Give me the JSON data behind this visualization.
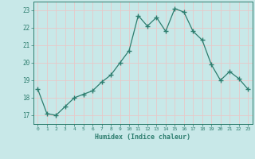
{
  "x": [
    0,
    1,
    2,
    3,
    4,
    5,
    6,
    7,
    8,
    9,
    10,
    11,
    12,
    13,
    14,
    15,
    16,
    17,
    18,
    19,
    20,
    21,
    22,
    23
  ],
  "y": [
    18.5,
    17.1,
    17.0,
    17.5,
    18.0,
    18.2,
    18.4,
    18.9,
    19.3,
    20.0,
    20.7,
    22.7,
    22.1,
    22.6,
    21.8,
    23.1,
    22.9,
    21.8,
    21.3,
    19.9,
    19.0,
    19.5,
    19.1,
    18.5
  ],
  "line_color": "#2d7d6e",
  "bg_color": "#c8e8e8",
  "grid_color_major": "#e8c8c8",
  "grid_color_minor": "#e8c8c8",
  "xlabel": "Humidex (Indice chaleur)",
  "ylabel_ticks": [
    17,
    18,
    19,
    20,
    21,
    22,
    23
  ],
  "xlim": [
    -0.5,
    23.5
  ],
  "ylim": [
    16.5,
    23.5
  ],
  "tick_color": "#2d7d6e",
  "label_color": "#2d7d6e"
}
